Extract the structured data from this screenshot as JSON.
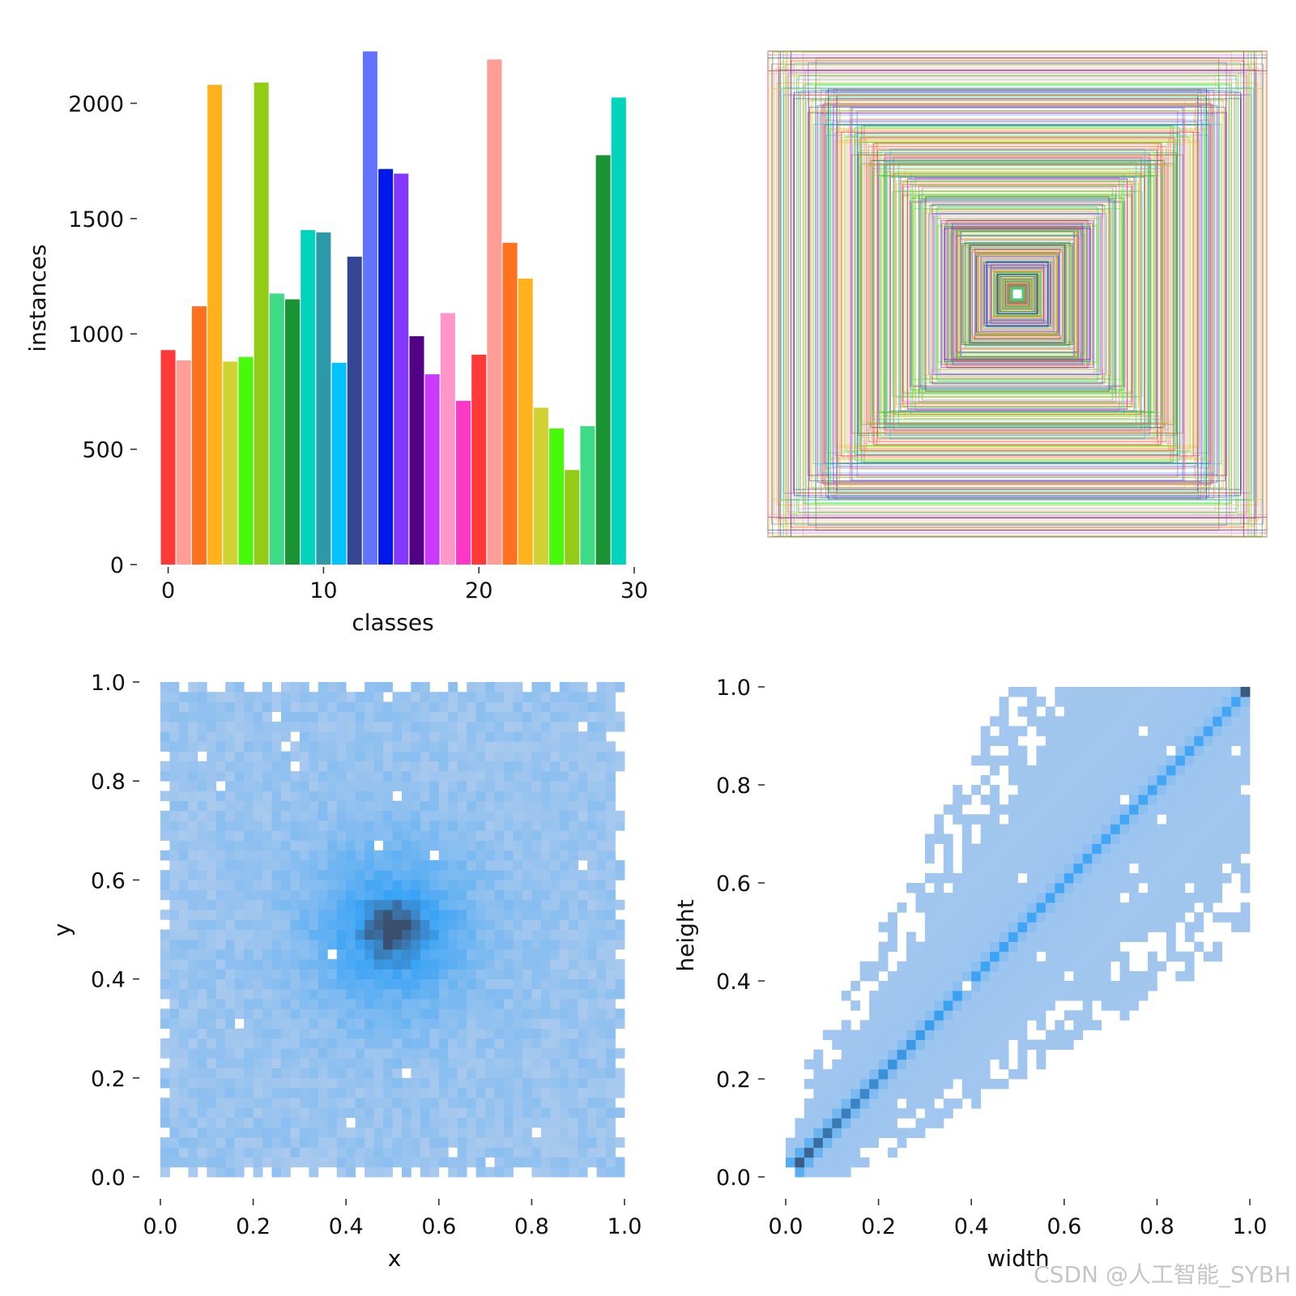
{
  "watermark": "CSDN @人工智能_SYBH",
  "chart_data": [
    {
      "type": "bar",
      "id": "class-histogram",
      "xlabel": "classes",
      "ylabel": "instances",
      "xlim": [
        -0.5,
        30
      ],
      "ylim": [
        0,
        2230
      ],
      "xticks": [
        0,
        10,
        20,
        30
      ],
      "yticks": [
        0,
        500,
        1000,
        1500,
        2000
      ],
      "categories": [
        0,
        1,
        2,
        3,
        4,
        5,
        6,
        7,
        8,
        9,
        10,
        11,
        12,
        13,
        14,
        15,
        16,
        17,
        18,
        19,
        20,
        21,
        22,
        23,
        24,
        25,
        26,
        27,
        28,
        29
      ],
      "values": [
        930,
        885,
        1120,
        2080,
        880,
        900,
        2090,
        1175,
        1150,
        1450,
        1440,
        875,
        1335,
        2225,
        1715,
        1695,
        990,
        825,
        1090,
        710,
        910,
        2190,
        1395,
        1240,
        680,
        590,
        410,
        600,
        1775,
        2025
      ],
      "colors": [
        "#ff3838",
        "#ff9d97",
        "#ff701f",
        "#ffb21d",
        "#cfd231",
        "#48f90a",
        "#92cc17",
        "#3ddb86",
        "#1a9334",
        "#00d4bb",
        "#2c99a8",
        "#00c2ff",
        "#344593",
        "#6473ff",
        "#0018ec",
        "#8438ff",
        "#520085",
        "#cb38ff",
        "#ff95c8",
        "#ff37c7",
        "#ff3838",
        "#ff9d97",
        "#ff701f",
        "#ffb21d",
        "#cfd231",
        "#48f90a",
        "#92cc17",
        "#3ddb86",
        "#1a9334",
        "#00d4bb"
      ]
    },
    {
      "type": "rectangles",
      "id": "box-overlay",
      "description_free": true,
      "box_count_approx": 500
    },
    {
      "type": "heatmap",
      "id": "xy-density",
      "xlabel": "x",
      "ylabel": "y",
      "xlim": [
        0,
        1
      ],
      "ylim": [
        0,
        1
      ],
      "xticks": [
        0.0,
        0.2,
        0.4,
        0.6,
        0.8,
        1.0
      ],
      "yticks": [
        0.0,
        0.2,
        0.4,
        0.6,
        0.8,
        1.0
      ],
      "peak": [
        0.5,
        0.5
      ],
      "bins": 50
    },
    {
      "type": "heatmap",
      "id": "wh-density",
      "xlabel": "width",
      "ylabel": "height",
      "xlim": [
        0,
        1
      ],
      "ylim": [
        0,
        1
      ],
      "xticks": [
        0.0,
        0.2,
        0.4,
        0.6,
        0.8,
        1.0
      ],
      "yticks": [
        0.0,
        0.2,
        0.4,
        0.6,
        0.8,
        1.0
      ],
      "diagonal": true,
      "bins": 50
    }
  ],
  "colors": {
    "light_blue": "#a9c9ee",
    "mid_blue": "#3aa3f5",
    "dark_blue": "#3a4e6e"
  }
}
